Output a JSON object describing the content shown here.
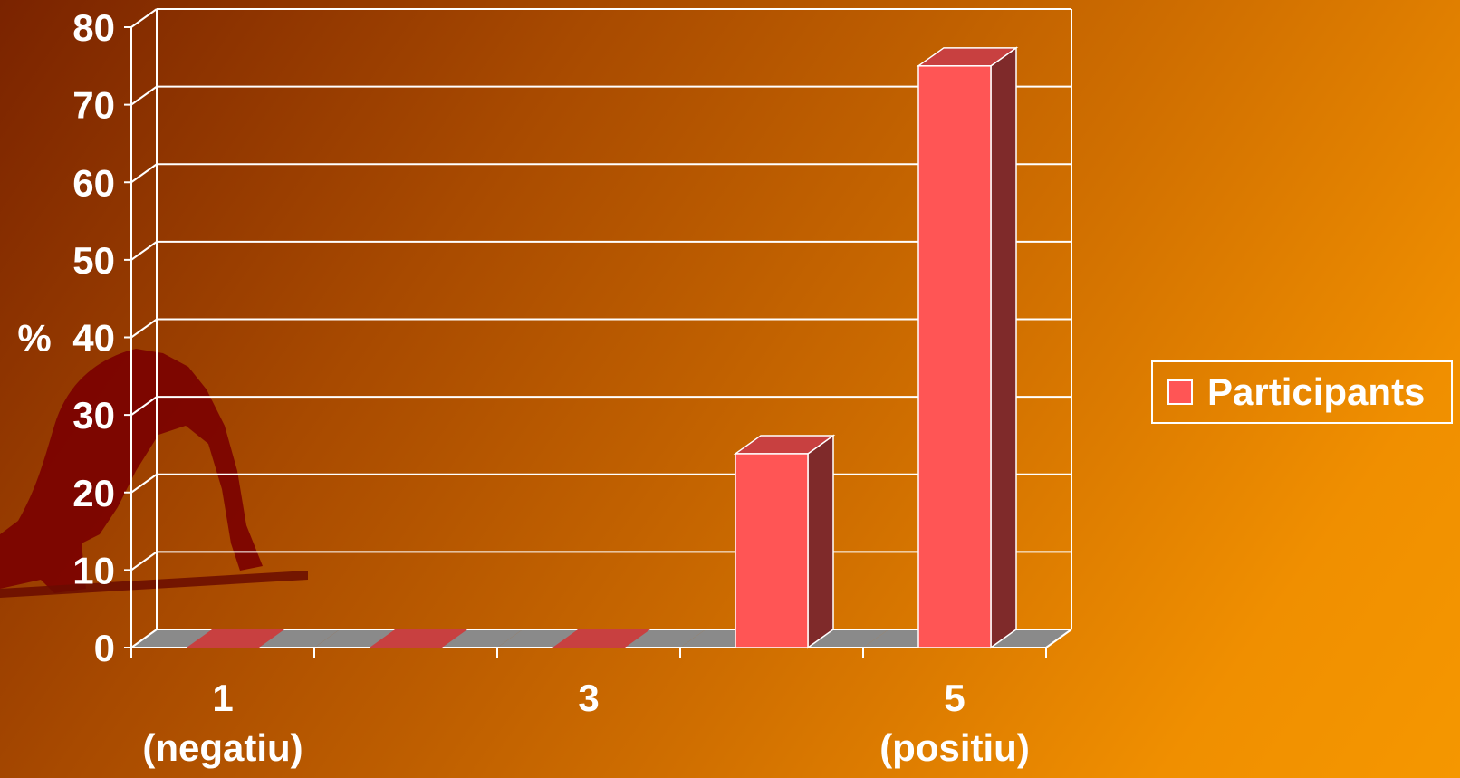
{
  "chart_data": {
    "type": "bar",
    "ylabel": "%",
    "ylim": [
      0,
      80
    ],
    "yticks": [
      "0",
      "10",
      "20",
      "30",
      "40",
      "50",
      "60",
      "70",
      "80"
    ],
    "categories": [
      "1",
      "2",
      "3",
      "4",
      "5"
    ],
    "x_tick_labels": [
      {
        "category": "1",
        "lines": [
          "1",
          "(negatiu)"
        ]
      },
      {
        "category": "3",
        "lines": [
          "3"
        ]
      },
      {
        "category": "5",
        "lines": [
          "5",
          "(positiu)"
        ]
      }
    ],
    "series": [
      {
        "name": "Participants",
        "values": [
          0,
          0,
          0,
          25,
          75
        ]
      }
    ],
    "legend_position": "right",
    "grid": true,
    "three_d": true
  },
  "colors": {
    "bar_front": "#ff5555",
    "bar_side": "#7f2a2a",
    "bar_top": "#c84040",
    "floor": "#8a8a8a",
    "gridline": "#ffffff",
    "text": "#ffffff"
  }
}
